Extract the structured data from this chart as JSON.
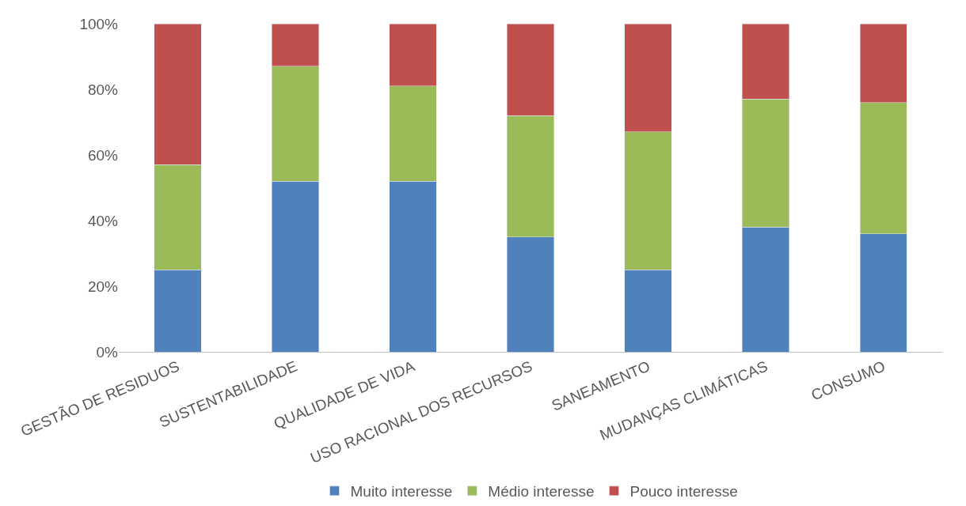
{
  "chart_data": {
    "type": "bar",
    "stacked": true,
    "categories": [
      "GESTÃO DE RESIDUOS",
      "SUSTENTABILIDADE",
      "QUALIDADE DE VIDA",
      "USO RACIONAL DOS RECURSOS",
      "SANEAMENTO",
      "MUDANÇAS CLIMÁTICAS",
      "CONSUMO"
    ],
    "series": [
      {
        "name": "Muito interesse",
        "color": "#4f81bd",
        "values": [
          25,
          52,
          52,
          35,
          25,
          38,
          36
        ]
      },
      {
        "name": "Médio interesse",
        "color": "#9bbb59",
        "values": [
          32,
          35,
          29,
          37,
          42,
          39,
          40
        ]
      },
      {
        "name": "Pouco interesse",
        "color": "#c0504d",
        "values": [
          43,
          13,
          19,
          28,
          33,
          23,
          24
        ]
      }
    ],
    "ylim": [
      0,
      100
    ],
    "yticks": [
      {
        "value": 0,
        "label": "0%"
      },
      {
        "value": 20,
        "label": "20%"
      },
      {
        "value": 40,
        "label": "40%"
      },
      {
        "value": 60,
        "label": "60%"
      },
      {
        "value": 80,
        "label": "80%"
      },
      {
        "value": 100,
        "label": "100%"
      }
    ],
    "grid": false,
    "legend": "bottom"
  }
}
